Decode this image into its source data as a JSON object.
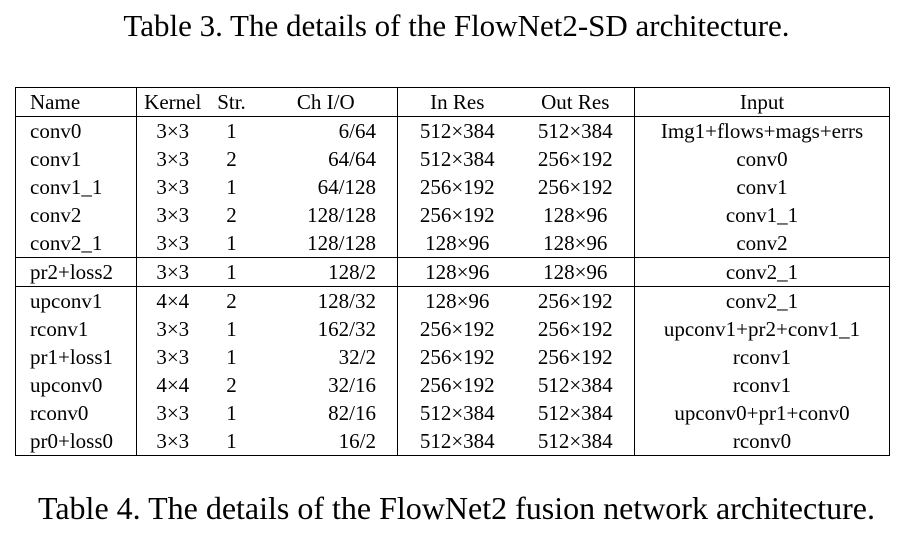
{
  "caption_top": "Table 3. The details of the FlowNet2-SD architecture.",
  "caption_bottom": "Table 4. The details of the FlowNet2 fusion network architecture.",
  "table": {
    "headers": [
      "Name",
      "Kernel",
      "Str.",
      "Ch I/O",
      "In Res",
      "Out Res",
      "Input"
    ],
    "groups": [
      [
        [
          "conv0",
          "3×3",
          "1",
          "6/64",
          "512×384",
          "512×384",
          "Img1+flows+mags+errs"
        ],
        [
          "conv1",
          "3×3",
          "2",
          "64/64",
          "512×384",
          "256×192",
          "conv0"
        ],
        [
          "conv1_1",
          "3×3",
          "1",
          "64/128",
          "256×192",
          "256×192",
          "conv1"
        ],
        [
          "conv2",
          "3×3",
          "2",
          "128/128",
          "256×192",
          "128×96",
          "conv1_1"
        ],
        [
          "conv2_1",
          "3×3",
          "1",
          "128/128",
          "128×96",
          "128×96",
          "conv2"
        ]
      ],
      [
        [
          "pr2+loss2",
          "3×3",
          "1",
          "128/2",
          "128×96",
          "128×96",
          "conv2_1"
        ]
      ],
      [
        [
          "upconv1",
          "4×4",
          "2",
          "128/32",
          "128×96",
          "256×192",
          "conv2_1"
        ],
        [
          "rconv1",
          "3×3",
          "1",
          "162/32",
          "256×192",
          "256×192",
          "upconv1+pr2+conv1_1"
        ],
        [
          "pr1+loss1",
          "3×3",
          "1",
          "32/2",
          "256×192",
          "256×192",
          "rconv1"
        ],
        [
          "upconv0",
          "4×4",
          "2",
          "32/16",
          "256×192",
          "512×384",
          "rconv1"
        ],
        [
          "rconv0",
          "3×3",
          "1",
          "82/16",
          "512×384",
          "512×384",
          "upconv0+pr1+conv0"
        ],
        [
          "pr0+loss0",
          "3×3",
          "1",
          "16/2",
          "512×384",
          "512×384",
          "rconv0"
        ]
      ]
    ]
  }
}
